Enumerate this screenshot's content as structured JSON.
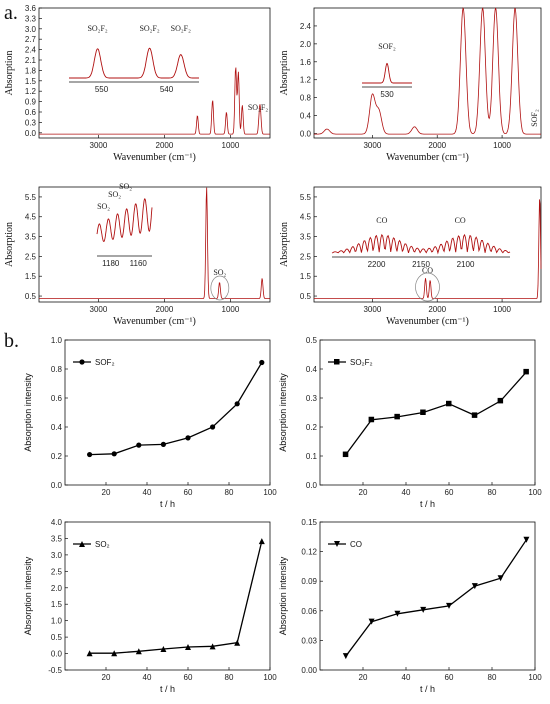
{
  "figure": {
    "label_a": "a.",
    "label_b": "b."
  },
  "chart_data": [
    {
      "type": "line",
      "id": "ir-1",
      "xlabel": "Wavenumber (cm⁻¹)",
      "ylabel": "Absorption",
      "xlim": [
        3900,
        400
      ],
      "ylim": [
        -0.15,
        3.6
      ],
      "xticks": [
        3000,
        2000,
        1000
      ],
      "yticks": [
        0.0,
        0.3,
        0.6,
        0.9,
        1.2,
        1.5,
        1.8,
        2.1,
        2.4,
        2.7,
        3.0,
        3.3,
        3.6
      ],
      "peaks": [
        [
          1500,
          0.5
        ],
        [
          1270,
          0.95
        ],
        [
          1060,
          0.6
        ],
        [
          920,
          1.9
        ],
        [
          880,
          1.75
        ],
        [
          820,
          0.8
        ],
        [
          560,
          0.5
        ],
        [
          545,
          0.45
        ]
      ],
      "annotations": [
        "SO₂F₂"
      ],
      "inset": {
        "xticks": [
          "550",
          "540"
        ],
        "labels": [
          "SO₂F₂",
          "SO₂F₂",
          "SO₂F₂"
        ]
      }
    },
    {
      "type": "line",
      "id": "ir-2",
      "xlabel": "Wavenumber (cm⁻¹)",
      "ylabel": "Absorption",
      "xlim": [
        3900,
        400
      ],
      "ylim": [
        -0.1,
        2.8
      ],
      "xticks": [
        3000,
        2000,
        1000
      ],
      "yticks": [
        0.0,
        0.4,
        0.8,
        1.2,
        1.6,
        2.0,
        2.4
      ],
      "peaks": [
        [
          3700,
          0.1
        ],
        [
          3000,
          0.85
        ],
        [
          2900,
          0.5
        ],
        [
          2350,
          0.15
        ],
        [
          1600,
          2.8
        ],
        [
          1300,
          2.8
        ],
        [
          1100,
          2.8
        ],
        [
          800,
          2.8
        ]
      ],
      "annotations": [
        "SOF₂"
      ],
      "inset": {
        "xticks": [
          "530"
        ],
        "labels": [
          "SOF₂"
        ]
      }
    },
    {
      "type": "line",
      "id": "ir-3",
      "xlabel": "Wavenumber (cm⁻¹)",
      "ylabel": "Absorption",
      "xlim": [
        3900,
        400
      ],
      "ylim": [
        0.2,
        6.0
      ],
      "xticks": [
        3000,
        2000,
        1000
      ],
      "yticks": [
        0.5,
        1.5,
        2.5,
        3.5,
        4.5,
        5.5
      ],
      "peaks": [
        [
          1360,
          6.0
        ],
        [
          1165,
          1.2
        ],
        [
          520,
          1.4
        ]
      ],
      "annotations": [
        "SO₂"
      ],
      "inset": {
        "xticks": [
          "1180",
          "1160"
        ],
        "labels": [
          "SO₂",
          "SO₂",
          "SO₂"
        ]
      }
    },
    {
      "type": "line",
      "id": "ir-4",
      "xlabel": "Wavenumber (cm⁻¹)",
      "ylabel": "Absorption",
      "xlim": [
        3900,
        400
      ],
      "ylim": [
        0.2,
        6.0
      ],
      "xticks": [
        3000,
        2000,
        1000
      ],
      "yticks": [
        0.5,
        1.5,
        2.5,
        3.5,
        4.5,
        5.5
      ],
      "peaks": [
        [
          2180,
          1.4
        ],
        [
          2110,
          1.3
        ],
        [
          420,
          5.5
        ]
      ],
      "annotations": [
        "CO"
      ],
      "inset": {
        "xticks": [
          "2200",
          "2150",
          "2100"
        ],
        "labels": [
          "CO",
          "CO"
        ]
      }
    },
    {
      "type": "line",
      "id": "b-1",
      "xlabel": "t / h",
      "ylabel": "Absorption intensity",
      "xlim": [
        0,
        100
      ],
      "ylim": [
        0.0,
        1.0
      ],
      "xticks": [
        20,
        40,
        60,
        80,
        100
      ],
      "yticks": [
        0.0,
        0.2,
        0.4,
        0.6,
        0.8,
        1.0
      ],
      "ytick_labels": [
        "0.0",
        "0.2",
        "0.4",
        "0.6",
        "0.8",
        "1.0"
      ],
      "marker": "circle",
      "series": [
        {
          "name": "SOF₂",
          "x": [
            12,
            24,
            36,
            48,
            60,
            72,
            84,
            96
          ],
          "values": [
            0.21,
            0.215,
            0.275,
            0.28,
            0.325,
            0.4,
            0.56,
            0.845
          ]
        }
      ]
    },
    {
      "type": "line",
      "id": "b-2",
      "xlabel": "t / h",
      "ylabel": "Absorption intensity",
      "xlim": [
        0,
        100
      ],
      "ylim": [
        0.0,
        0.5
      ],
      "xticks": [
        20,
        40,
        60,
        80,
        100
      ],
      "yticks": [
        0.0,
        0.1,
        0.2,
        0.3,
        0.4,
        0.5
      ],
      "ytick_labels": [
        "0.0",
        "0.1",
        "0.2",
        "0.3",
        "0.4",
        "0.5"
      ],
      "marker": "square",
      "series": [
        {
          "name": "SO₂F₂",
          "x": [
            12,
            24,
            36,
            48,
            60,
            72,
            84,
            96
          ],
          "values": [
            0.105,
            0.225,
            0.235,
            0.25,
            0.28,
            0.24,
            0.29,
            0.39
          ]
        }
      ]
    },
    {
      "type": "line",
      "id": "b-3",
      "xlabel": "t / h",
      "ylabel": "Absorption intensity",
      "xlim": [
        0,
        100
      ],
      "ylim": [
        -0.5,
        4.0
      ],
      "xticks": [
        20,
        40,
        60,
        80,
        100
      ],
      "yticks": [
        -0.5,
        0.0,
        0.5,
        1.0,
        1.5,
        2.0,
        2.5,
        3.0,
        3.5,
        4.0
      ],
      "ytick_labels": [
        "-0.5",
        "0.0",
        "0.5",
        "1.0",
        "1.5",
        "2.0",
        "2.5",
        "3.0",
        "3.5",
        "4.0"
      ],
      "marker": "triangle-up",
      "series": [
        {
          "name": "SO₂",
          "x": [
            12,
            24,
            36,
            48,
            60,
            72,
            84,
            96
          ],
          "values": [
            0.01,
            0.01,
            0.07,
            0.14,
            0.2,
            0.22,
            0.33,
            3.42
          ]
        }
      ]
    },
    {
      "type": "line",
      "id": "b-4",
      "xlabel": "t / h",
      "ylabel": "Absorption intensity",
      "xlim": [
        0,
        100
      ],
      "ylim": [
        0.0,
        0.15
      ],
      "xticks": [
        20,
        40,
        60,
        80,
        100
      ],
      "yticks": [
        0.0,
        0.03,
        0.06,
        0.09,
        0.12,
        0.15
      ],
      "ytick_labels": [
        "0.00",
        "0.03",
        "0.06",
        "0.09",
        "0.12",
        "0.15"
      ],
      "marker": "triangle-down",
      "series": [
        {
          "name": "CO",
          "x": [
            12,
            24,
            36,
            48,
            60,
            72,
            84,
            96
          ],
          "values": [
            0.014,
            0.049,
            0.057,
            0.061,
            0.065,
            0.085,
            0.093,
            0.132
          ]
        }
      ]
    }
  ]
}
